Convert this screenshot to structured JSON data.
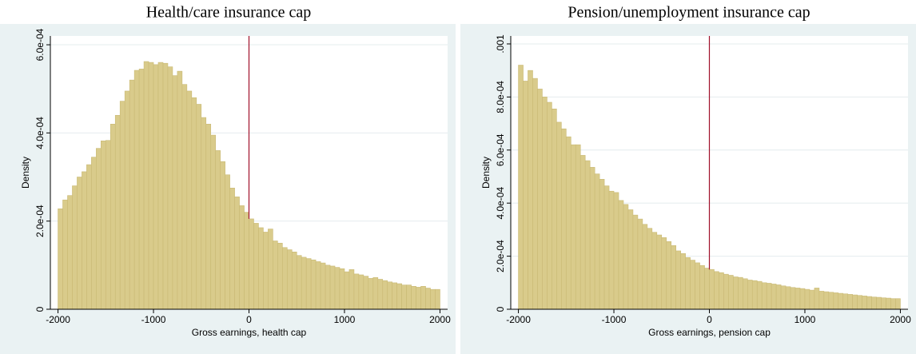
{
  "chart_data": [
    {
      "type": "histogram",
      "title": "Health/care insurance cap",
      "xlabel": "Gross earnings, health cap",
      "ylabel": "Density",
      "bins": [
        -2000,
        -1950,
        -1900,
        -1850,
        -1800,
        -1750,
        -1700,
        -1650,
        -1600,
        -1550,
        -1500,
        -1450,
        -1400,
        -1350,
        -1300,
        -1250,
        -1200,
        -1150,
        -1100,
        -1050,
        -1000,
        -950,
        -900,
        -850,
        -800,
        -750,
        -700,
        -650,
        -600,
        -550,
        -500,
        -450,
        -400,
        -350,
        -300,
        -250,
        -200,
        -150,
        -100,
        -50,
        0,
        50,
        100,
        150,
        200,
        250,
        300,
        350,
        400,
        450,
        500,
        550,
        600,
        650,
        700,
        750,
        800,
        850,
        900,
        950,
        1000,
        1050,
        1100,
        1150,
        1200,
        1250,
        1300,
        1350,
        1400,
        1450,
        1500,
        1550,
        1600,
        1650,
        1700,
        1750,
        1800,
        1850,
        1900,
        1950,
        2000
      ],
      "values": [
        0.000228,
        0.000248,
        0.000258,
        0.00028,
        0.0003,
        0.000312,
        0.000328,
        0.000345,
        0.000365,
        0.000382,
        0.000383,
        0.00042,
        0.00044,
        0.000472,
        0.000495,
        0.00052,
        0.000542,
        0.000545,
        0.000562,
        0.00056,
        0.000555,
        0.00056,
        0.000558,
        0.00055,
        0.00053,
        0.00054,
        0.00051,
        0.000495,
        0.00048,
        0.000465,
        0.000435,
        0.00042,
        0.000395,
        0.00036,
        0.000335,
        0.000305,
        0.000275,
        0.000255,
        0.000235,
        0.00022,
        0.000205,
        0.000195,
        0.000185,
        0.000175,
        0.000182,
        0.000155,
        0.00015,
        0.00014,
        0.000135,
        0.00013,
        0.000122,
        0.000118,
        0.000115,
        0.000112,
        0.000108,
        0.000105,
        0.0001,
        9.8e-05,
        9.5e-05,
        9.2e-05,
        8.5e-05,
        9e-05,
        8e-05,
        7.8e-05,
        7.5e-05,
        7e-05,
        7.2e-05,
        6.8e-05,
        6.5e-05,
        6.2e-05,
        6e-05,
        5.8e-05,
        5.5e-05,
        5.5e-05,
        5.2e-05,
        5e-05,
        5.2e-05,
        4.8e-05,
        4.5e-05,
        4.5e-05
      ],
      "color": "#d9cb8b",
      "reference_line": 0,
      "reference_color": "#a0102a",
      "xlim": [
        -2080,
        2080
      ],
      "xticks": [
        -2000,
        -1000,
        0,
        1000,
        2000
      ],
      "ylim": [
        0,
        0.00062
      ],
      "yticks": [
        0,
        {
          "value": 0.0002,
          "label": "2.0e-04"
        },
        {
          "value": 0.0004,
          "label": "4.0e-04"
        },
        {
          "value": 0.0006,
          "label": "6.0e-04"
        }
      ],
      "grid": true
    },
    {
      "type": "histogram",
      "title": "Pension/unemployment insurance cap",
      "xlabel": "Gross earnings, pension cap",
      "ylabel": "Density",
      "bins": [
        -2000,
        -1950,
        -1900,
        -1850,
        -1800,
        -1750,
        -1700,
        -1650,
        -1600,
        -1550,
        -1500,
        -1450,
        -1400,
        -1350,
        -1300,
        -1250,
        -1200,
        -1150,
        -1100,
        -1050,
        -1000,
        -950,
        -900,
        -850,
        -800,
        -750,
        -700,
        -650,
        -600,
        -550,
        -500,
        -450,
        -400,
        -350,
        -300,
        -250,
        -200,
        -150,
        -100,
        -50,
        0,
        50,
        100,
        150,
        200,
        250,
        300,
        350,
        400,
        450,
        500,
        550,
        600,
        650,
        700,
        750,
        800,
        850,
        900,
        950,
        1000,
        1050,
        1100,
        1150,
        1200,
        1250,
        1300,
        1350,
        1400,
        1450,
        1500,
        1550,
        1600,
        1650,
        1700,
        1750,
        1800,
        1850,
        1900,
        1950,
        2000
      ],
      "values": [
        0.00092,
        0.00086,
        0.0009,
        0.00087,
        0.00083,
        0.0008,
        0.00078,
        0.000755,
        0.000705,
        0.00068,
        0.00065,
        0.00062,
        0.00062,
        0.00058,
        0.00056,
        0.000535,
        0.00051,
        0.00049,
        0.000465,
        0.000445,
        0.00044,
        0.00041,
        0.000395,
        0.000375,
        0.000355,
        0.00034,
        0.00032,
        0.000305,
        0.00029,
        0.00028,
        0.00027,
        0.000255,
        0.00024,
        0.00022,
        0.00021,
        0.000195,
        0.000185,
        0.000175,
        0.000165,
        0.000155,
        0.00015,
        0.000142,
        0.000138,
        0.000132,
        0.000128,
        0.000122,
        0.00012,
        0.000115,
        0.00011,
        0.000108,
        0.000105,
        0.0001,
        9.8e-05,
        9.5e-05,
        9.2e-05,
        8.8e-05,
        8.5e-05,
        8.2e-05,
        8e-05,
        7.8e-05,
        7.5e-05,
        7.2e-05,
        8e-05,
        6.8e-05,
        6.6e-05,
        6.4e-05,
        6.2e-05,
        6e-05,
        5.8e-05,
        5.6e-05,
        5.4e-05,
        5.2e-05,
        5e-05,
        4.8e-05,
        4.6e-05,
        4.5e-05,
        4.3e-05,
        4.2e-05,
        4e-05,
        4e-05
      ],
      "color": "#d9cb8b",
      "reference_line": 0,
      "reference_color": "#a0102a",
      "xlim": [
        -2080,
        2080
      ],
      "xticks": [
        -2000,
        -1000,
        0,
        1000,
        2000
      ],
      "ylim": [
        0,
        0.00103
      ],
      "yticks": [
        0,
        {
          "value": 0.0002,
          "label": "2.0e-04"
        },
        {
          "value": 0.0004,
          "label": "4.0e-04"
        },
        {
          "value": 0.0006,
          "label": "6.0e-04"
        },
        {
          "value": 0.0008,
          "label": "8.0e-04"
        },
        {
          "value": 0.001,
          "label": ".001"
        }
      ],
      "grid": true
    }
  ]
}
